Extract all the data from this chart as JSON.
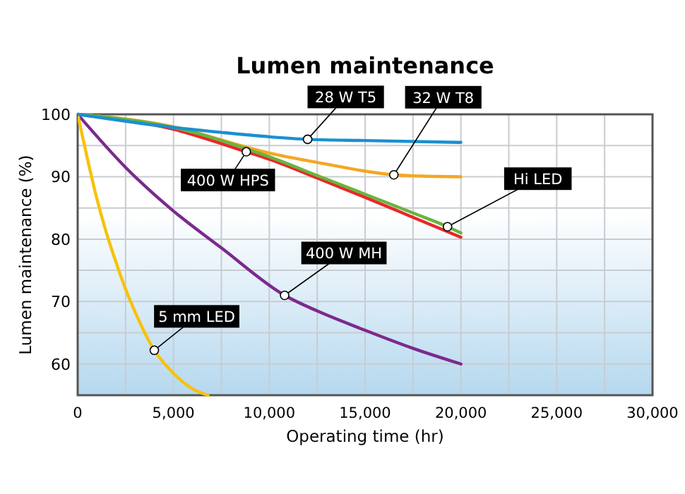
{
  "chart_data": {
    "type": "line",
    "title": "Lumen maintenance",
    "xlabel": "Operating time (hr)",
    "ylabel": "Lumen maintenance (%)",
    "xlim": [
      0,
      30000
    ],
    "ylim": [
      55,
      100
    ],
    "xticks": [
      {
        "value": 0,
        "label": "0"
      },
      {
        "value": 2500,
        "label": null
      },
      {
        "value": 5000,
        "label": "5,000"
      },
      {
        "value": 7500,
        "label": null
      },
      {
        "value": 10000,
        "label": "10,000"
      },
      {
        "value": 12500,
        "label": null
      },
      {
        "value": 15000,
        "label": "15,000"
      },
      {
        "value": 17500,
        "label": null
      },
      {
        "value": 20000,
        "label": "20,000"
      },
      {
        "value": 22500,
        "label": null
      },
      {
        "value": 25000,
        "label": "25,000"
      },
      {
        "value": 27500,
        "label": null
      },
      {
        "value": 30000,
        "label": "30,000"
      }
    ],
    "yticks": [
      {
        "value": 60,
        "label": "60"
      },
      {
        "value": 65,
        "label": null
      },
      {
        "value": 70,
        "label": "70"
      },
      {
        "value": 75,
        "label": null
      },
      {
        "value": 80,
        "label": "80"
      },
      {
        "value": 85,
        "label": null
      },
      {
        "value": 90,
        "label": "90"
      },
      {
        "value": 95,
        "label": null
      },
      {
        "value": 100,
        "label": "100"
      }
    ],
    "grid": true,
    "marker": "none",
    "line_style": "solid",
    "series": [
      {
        "name": "32 W T8",
        "color": "#f5a623",
        "x": [
          0,
          5000,
          8500,
          10000,
          12500,
          16500,
          18000,
          20000
        ],
        "values": [
          100,
          98,
          95,
          93.8,
          92.3,
          90.3,
          90.1,
          90
        ]
      },
      {
        "name": "400 W HPS",
        "color": "#e8282a",
        "x": [
          0,
          5000,
          8800,
          10000,
          12500,
          15000,
          17500,
          20000
        ],
        "values": [
          100,
          97.6,
          94,
          92.8,
          89.8,
          86.7,
          83.5,
          80.3
        ]
      },
      {
        "name": "Hi LED",
        "color": "#6ab43e",
        "x": [
          0,
          5000,
          10000,
          12500,
          15000,
          17500,
          19300,
          20000
        ],
        "values": [
          100,
          97.9,
          93.2,
          90.2,
          87.2,
          84.2,
          82,
          81
        ]
      },
      {
        "name": "400 W MH",
        "color": "#7b2a8e",
        "x": [
          0,
          2500,
          5000,
          7500,
          10800,
          12500,
          15000,
          17500,
          20000
        ],
        "values": [
          100,
          91.5,
          84.5,
          78.6,
          71,
          68.5,
          65.4,
          62.5,
          60
        ]
      },
      {
        "name": "5 mm LED",
        "color": "#f7c20a",
        "x": [
          0,
          500,
          1000,
          1500,
          2000,
          2500,
          3000,
          4000,
          5000,
          6000,
          6800
        ],
        "values": [
          100,
          93,
          86.5,
          81,
          76.3,
          72,
          68.3,
          62.2,
          58.5,
          56,
          55
        ]
      },
      {
        "name": "28 W T5",
        "color": "#1a90d0",
        "x": [
          0,
          2500,
          5000,
          7500,
          10000,
          12000,
          15000,
          20000
        ],
        "values": [
          100,
          98.9,
          97.9,
          97.1,
          96.4,
          96,
          95.8,
          95.5
        ]
      }
    ]
  }
}
